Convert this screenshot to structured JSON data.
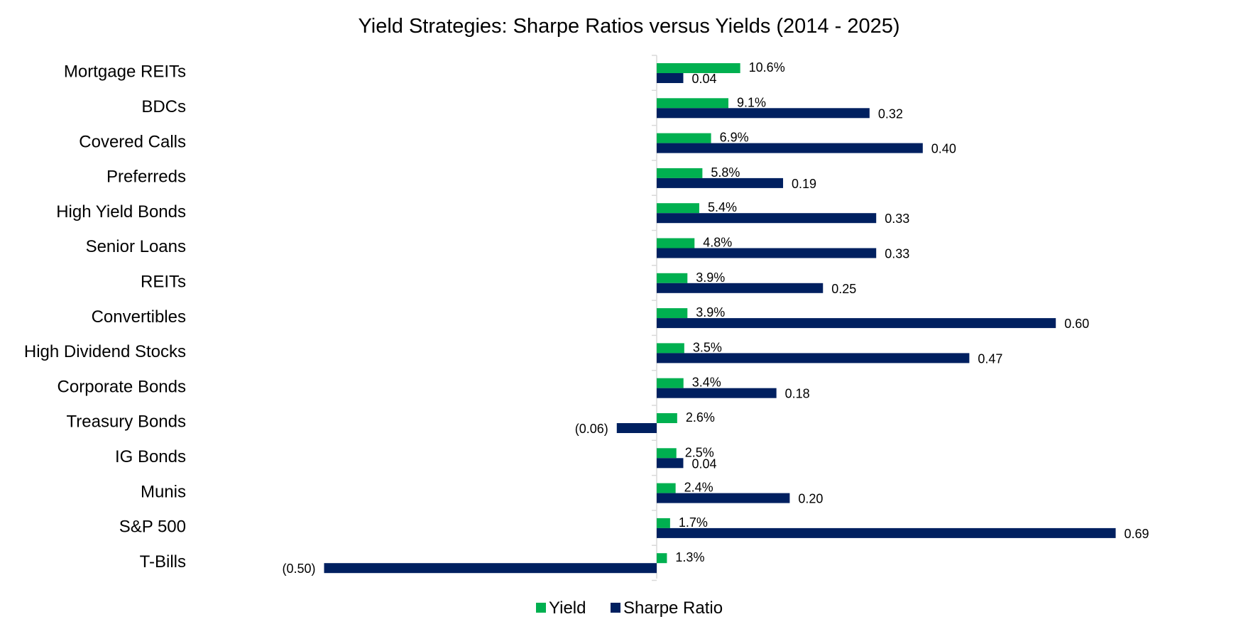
{
  "chart_data": {
    "type": "bar",
    "orientation": "horizontal",
    "title": "Yield Strategies: Sharpe Ratios versus Yields (2014 - 2025)",
    "categories": [
      "Mortgage REITs",
      "BDCs",
      "Covered Calls",
      "Preferreds",
      "High Yield Bonds",
      "Senior Loans",
      "REITs",
      "Convertibles",
      "High Dividend Stocks",
      "Corporate Bonds",
      "Treasury Bonds",
      "IG Bonds",
      "Munis",
      "S&P 500",
      "T-Bills"
    ],
    "series": [
      {
        "name": "Yield",
        "color": "#00b050",
        "values": [
          10.6,
          9.1,
          6.9,
          5.8,
          5.4,
          4.8,
          3.9,
          3.9,
          3.5,
          3.4,
          2.6,
          2.5,
          2.4,
          1.7,
          1.3
        ],
        "labels": [
          "10.6%",
          "9.1%",
          "6.9%",
          "5.8%",
          "5.4%",
          "4.8%",
          "3.9%",
          "3.9%",
          "3.5%",
          "3.4%",
          "2.6%",
          "2.5%",
          "2.4%",
          "1.7%",
          "1.3%"
        ]
      },
      {
        "name": "Sharpe Ratio",
        "color": "#002060",
        "values": [
          0.04,
          0.32,
          0.4,
          0.19,
          0.33,
          0.33,
          0.25,
          0.6,
          0.47,
          0.18,
          -0.06,
          0.04,
          0.2,
          0.69,
          -0.5
        ],
        "labels": [
          "0.04",
          "0.32",
          "0.40",
          "0.19",
          "0.33",
          "0.33",
          "0.25",
          "0.60",
          "0.47",
          "0.18",
          "(0.06)",
          "0.04",
          "0.20",
          "0.69",
          "(0.50)"
        ]
      }
    ],
    "legend_position": "bottom",
    "grid": false
  }
}
